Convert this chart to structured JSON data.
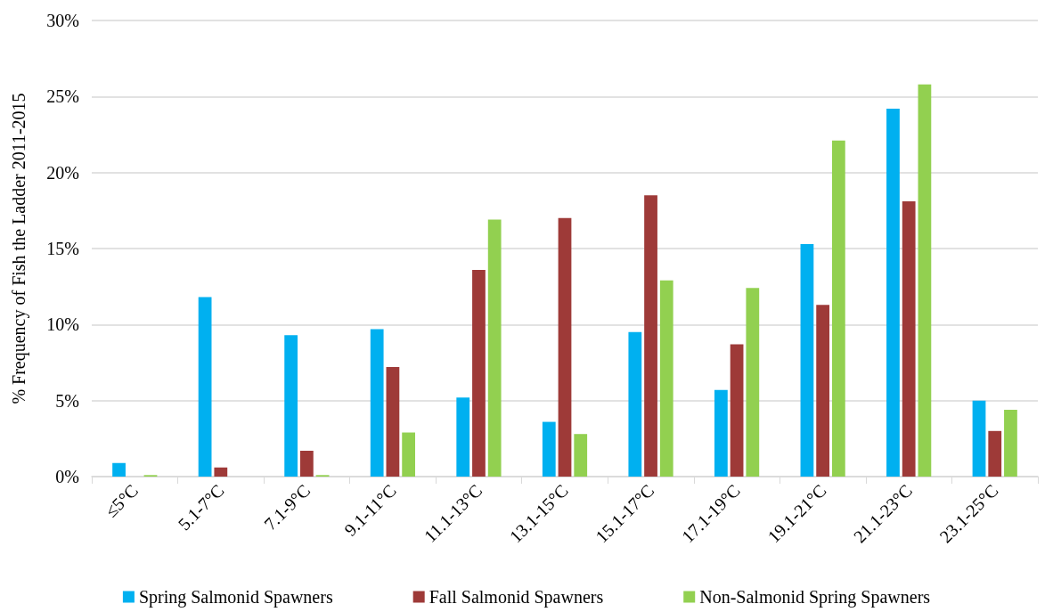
{
  "chart_data": {
    "type": "bar",
    "ylabel": "% Frequency of Fish the Ladder 2011-2015",
    "categories": [
      "≤5°C",
      "5.1-7°C",
      "7.1-9°C",
      "9.1-11°C",
      "11.1-13°C",
      "13.1-15°C",
      "15.1-17°C",
      "17.1-19°C",
      "19.1-21°C",
      "21.1-23°C",
      "23.1-25°C"
    ],
    "series": [
      {
        "name": "Spring Salmonid Spawners",
        "color": "#00b0f0",
        "values": [
          0.9,
          11.8,
          9.3,
          9.7,
          5.2,
          3.6,
          9.5,
          5.7,
          15.3,
          24.2,
          5.0
        ]
      },
      {
        "name": "Fall Salmonid Spawners",
        "color": "#9e3a38",
        "values": [
          0,
          0.6,
          1.7,
          7.2,
          13.6,
          17.0,
          18.5,
          8.7,
          11.3,
          18.1,
          3.0
        ]
      },
      {
        "name": "Non-Salmonid Spring Spawners",
        "color": "#92d050",
        "values": [
          0.1,
          0,
          0.1,
          2.9,
          16.9,
          2.8,
          12.9,
          12.4,
          22.1,
          25.8,
          4.4
        ]
      }
    ],
    "ylim": [
      0,
      30
    ],
    "yticks": [
      {
        "value": 0,
        "label": "0%"
      },
      {
        "value": 5,
        "label": "5%"
      },
      {
        "value": 10,
        "label": "10%"
      },
      {
        "value": 15,
        "label": "15%"
      },
      {
        "value": 20,
        "label": "20%"
      },
      {
        "value": 25,
        "label": "25%"
      },
      {
        "value": 30,
        "label": "30%"
      }
    ],
    "grid": "y",
    "legend": "bottom"
  }
}
